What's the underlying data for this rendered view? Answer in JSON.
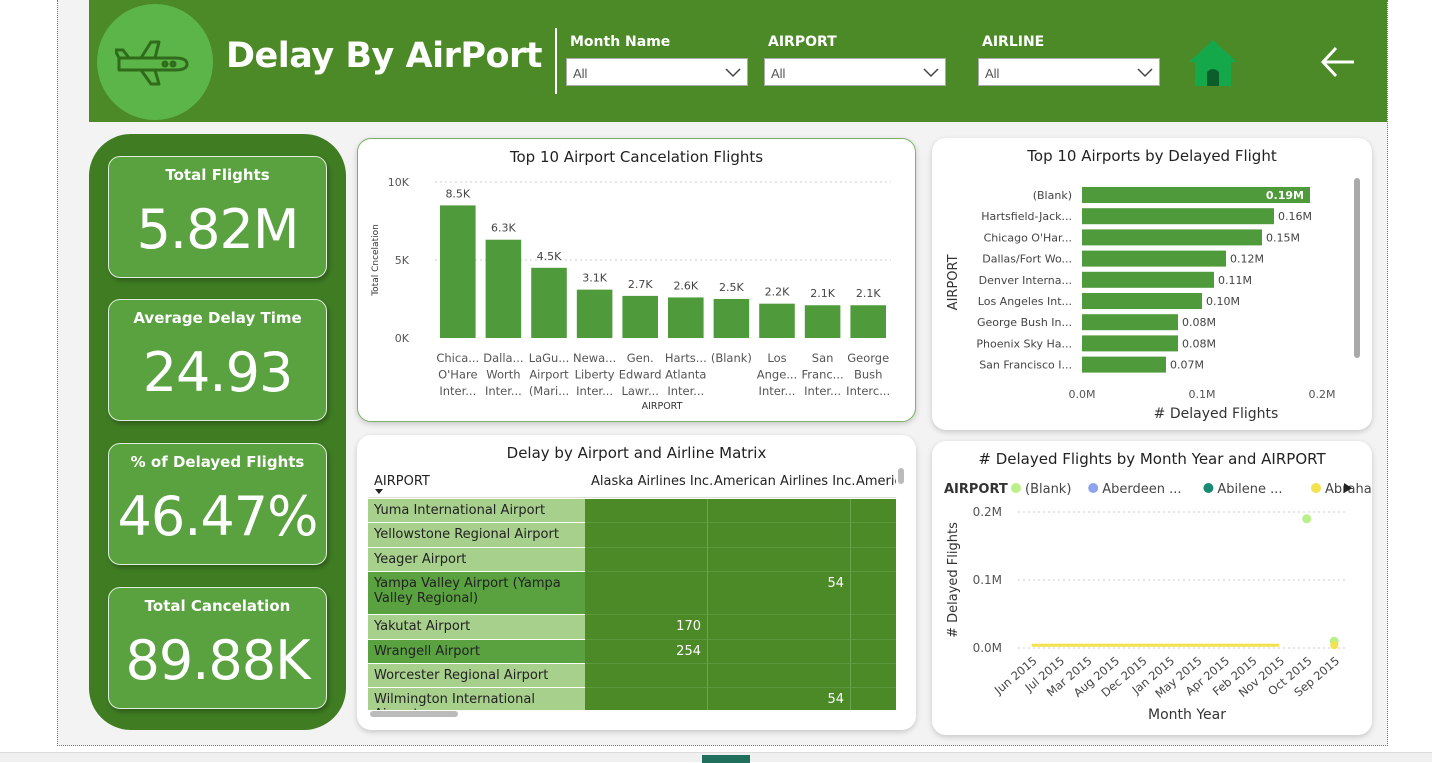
{
  "header": {
    "title": "Delay By AirPort",
    "slicers": [
      {
        "label": "Month Name",
        "value": "All"
      },
      {
        "label": "AIRPORT",
        "value": "All"
      },
      {
        "label": "AIRLINE",
        "value": "All"
      }
    ],
    "icons": {
      "logo": "airplane-icon",
      "home": "home-icon",
      "back": "back-arrow-icon"
    }
  },
  "kpis": [
    {
      "label": "Total Flights",
      "value": "5.82M"
    },
    {
      "label": "Average Delay Time",
      "value": "24.93"
    },
    {
      "label": "% of Delayed Flights",
      "value": "46.47%"
    },
    {
      "label": "Total Cancelation",
      "value": "89.88K"
    }
  ],
  "colors": {
    "header": "#4b8a26",
    "bar": "#4f9a3a",
    "kpi_panel": "#3f7c22",
    "kpi_card": "#5aa140",
    "matrix_name_light": "#a8d08d",
    "matrix_name_dark": "#5aa140"
  },
  "chart_data": [
    {
      "type": "bar",
      "title": "Top 10 Airport Cancelation Flights",
      "xlabel": "AIRPORT",
      "ylabel": "Total Cncelation",
      "yticks": [
        "0K",
        "5K",
        "10K"
      ],
      "ylim": [
        0,
        10000
      ],
      "categories": [
        [
          "Chica...",
          "O'Hare",
          "Inter..."
        ],
        [
          "Dalla...",
          "Worth",
          "Inter..."
        ],
        [
          "LaGu...",
          "Airport",
          "(Mari..."
        ],
        [
          "Newa...",
          "Liberty",
          "Inter..."
        ],
        [
          "Gen.",
          "Edward",
          "Lawr..."
        ],
        [
          "Harts...",
          "Atlanta",
          "Inter..."
        ],
        [
          "(Blank)"
        ],
        [
          "Los",
          "Ange...",
          "Inter..."
        ],
        [
          "San",
          "Franc...",
          "Inter..."
        ],
        [
          "George",
          "Bush",
          "Interc..."
        ]
      ],
      "values": [
        8500,
        6300,
        4500,
        3100,
        2700,
        2600,
        2500,
        2200,
        2100,
        2100
      ],
      "data_labels": [
        "8.5K",
        "6.3K",
        "4.5K",
        "3.1K",
        "2.7K",
        "2.6K",
        "2.5K",
        "2.2K",
        "2.1K",
        "2.1K"
      ]
    },
    {
      "type": "bar",
      "orientation": "horizontal",
      "title": "Top 10 Airports by Delayed Flight",
      "xlabel": "# Delayed Flights",
      "ylabel": "AIRPORT",
      "xticks": [
        "0.0M",
        "0.1M",
        "0.2M"
      ],
      "xlim": [
        0,
        0.2
      ],
      "categories": [
        "(Blank)",
        "Hartsfield-Jack...",
        "Chicago O'Har...",
        "Dallas/Fort Wo...",
        "Denver Interna...",
        "Los Angeles Int...",
        "George Bush In...",
        "Phoenix Sky Ha...",
        "San Francisco I..."
      ],
      "values": [
        0.19,
        0.16,
        0.15,
        0.12,
        0.11,
        0.1,
        0.08,
        0.08,
        0.07
      ],
      "data_labels": [
        "0.19M",
        "0.16M",
        "0.15M",
        "0.12M",
        "0.11M",
        "0.10M",
        "0.08M",
        "0.08M",
        "0.07M"
      ]
    },
    {
      "type": "table",
      "title": "Delay by Airport and Airline Matrix",
      "columns": [
        "AIRPORT",
        "Alaska Airlines Inc.",
        "American Airlines Inc.",
        "Americ"
      ],
      "rows": [
        {
          "name": "Yuma International Airport",
          "values": [
            "",
            "",
            ""
          ],
          "shade": "light"
        },
        {
          "name": "Yellowstone Regional Airport",
          "values": [
            "",
            "",
            ""
          ],
          "shade": "light"
        },
        {
          "name": "Yeager Airport",
          "values": [
            "",
            "",
            ""
          ],
          "shade": "light"
        },
        {
          "name": "Yampa Valley Airport (Yampa Valley Regional)",
          "values": [
            "",
            "54",
            ""
          ],
          "shade": "dark"
        },
        {
          "name": "Yakutat Airport",
          "values": [
            "170",
            "",
            ""
          ],
          "shade": "light"
        },
        {
          "name": "Wrangell Airport",
          "values": [
            "254",
            "",
            ""
          ],
          "shade": "dark"
        },
        {
          "name": "Worcester Regional Airport",
          "values": [
            "",
            "",
            ""
          ],
          "shade": "light"
        },
        {
          "name": "Wilmington International Airport",
          "values": [
            "",
            "54",
            ""
          ],
          "shade": "light"
        }
      ]
    },
    {
      "type": "line",
      "title": "# Delayed Flights by Month Year and AIRPORT",
      "xlabel": "Month Year",
      "ylabel": "# Delayed Flights",
      "yticks": [
        "0.0M",
        "0.1M",
        "0.2M"
      ],
      "ylim": [
        0,
        0.2
      ],
      "legend_title": "AIRPORT",
      "legend": [
        {
          "name": "(Blank)",
          "color": "#b9f08a"
        },
        {
          "name": "Aberdeen ...",
          "color": "#8fa2ee"
        },
        {
          "name": "Abilene ...",
          "color": "#168a73"
        },
        {
          "name": "Abraha...",
          "color": "#f3e24d"
        }
      ],
      "x": [
        "Jun 2015",
        "Jul 2015",
        "Mar 2015",
        "Aug 2015",
        "Dec 2015",
        "Jan 2015",
        "May 2015",
        "Apr 2015",
        "Feb 2015",
        "Nov 2015",
        "Oct 2015",
        "Sep 2015"
      ],
      "series": [
        {
          "name": "(Blank)",
          "values": [
            null,
            null,
            null,
            null,
            null,
            null,
            null,
            null,
            null,
            null,
            0.19,
            0.01
          ]
        },
        {
          "name": "Abraha...",
          "values": [
            0.004,
            0.004,
            0.004,
            0.004,
            0.004,
            0.004,
            0.004,
            0.004,
            0.004,
            0.004,
            0.004,
            0.004
          ]
        }
      ]
    }
  ]
}
